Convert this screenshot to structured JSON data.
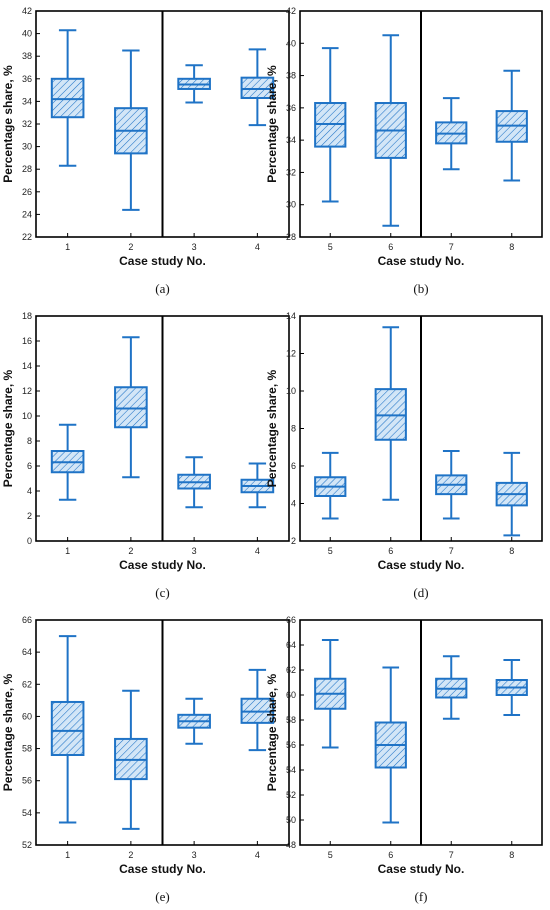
{
  "colors": {
    "box": "#1f73c6",
    "frame": "#000000"
  },
  "chart_data": [
    {
      "id": "a",
      "type": "box",
      "panel_label": "(a)",
      "xlabel": "Case study No.",
      "ylabel": "Percentage share, %",
      "ylim": [
        22,
        42
      ],
      "yticks": [
        22,
        24,
        26,
        28,
        30,
        32,
        34,
        36,
        38,
        40,
        42
      ],
      "divider_after": 2,
      "categories": [
        "1",
        "2",
        "3",
        "4"
      ],
      "boxes": [
        {
          "min": 28.3,
          "q1": 32.6,
          "median": 34.2,
          "q3": 36.0,
          "max": 40.3
        },
        {
          "min": 24.4,
          "q1": 29.4,
          "median": 31.4,
          "q3": 33.4,
          "max": 38.5
        },
        {
          "min": 33.9,
          "q1": 35.1,
          "median": 35.5,
          "q3": 36.0,
          "max": 37.2
        },
        {
          "min": 31.9,
          "q1": 34.3,
          "median": 35.1,
          "q3": 36.1,
          "max": 38.6
        }
      ]
    },
    {
      "id": "b",
      "type": "box",
      "panel_label": "(b)",
      "xlabel": "Case study No.",
      "ylabel": "Percentage share, %",
      "ylim": [
        28,
        42
      ],
      "yticks": [
        28,
        30,
        32,
        34,
        36,
        38,
        40,
        42
      ],
      "divider_after": 2,
      "categories": [
        "5",
        "6",
        "7",
        "8"
      ],
      "boxes": [
        {
          "min": 30.2,
          "q1": 33.6,
          "median": 35.0,
          "q3": 36.3,
          "max": 39.7
        },
        {
          "min": 28.7,
          "q1": 32.9,
          "median": 34.6,
          "q3": 36.3,
          "max": 40.5
        },
        {
          "min": 32.2,
          "q1": 33.8,
          "median": 34.4,
          "q3": 35.1,
          "max": 36.6
        },
        {
          "min": 31.5,
          "q1": 33.9,
          "median": 34.9,
          "q3": 35.8,
          "max": 38.3
        }
      ]
    },
    {
      "id": "c",
      "type": "box",
      "panel_label": "(c)",
      "xlabel": "Case study No.",
      "ylabel": "Percentage share, %",
      "ylim": [
        0,
        18
      ],
      "yticks": [
        0,
        2,
        4,
        6,
        8,
        10,
        12,
        14,
        16,
        18
      ],
      "divider_after": 2,
      "categories": [
        "1",
        "2",
        "3",
        "4"
      ],
      "boxes": [
        {
          "min": 3.3,
          "q1": 5.5,
          "median": 6.3,
          "q3": 7.2,
          "max": 9.3
        },
        {
          "min": 5.1,
          "q1": 9.1,
          "median": 10.6,
          "q3": 12.3,
          "max": 16.3
        },
        {
          "min": 2.7,
          "q1": 4.2,
          "median": 4.7,
          "q3": 5.3,
          "max": 6.7
        },
        {
          "min": 2.7,
          "q1": 3.9,
          "median": 4.4,
          "q3": 4.9,
          "max": 6.2
        }
      ]
    },
    {
      "id": "d",
      "type": "box",
      "panel_label": "(d)",
      "xlabel": "Case study No.",
      "ylabel": "Percentage share, %",
      "ylim": [
        2,
        14
      ],
      "yticks": [
        2,
        4,
        6,
        8,
        10,
        12,
        14
      ],
      "divider_after": 2,
      "categories": [
        "5",
        "6",
        "7",
        "8"
      ],
      "boxes": [
        {
          "min": 3.2,
          "q1": 4.4,
          "median": 4.9,
          "q3": 5.4,
          "max": 6.7
        },
        {
          "min": 4.2,
          "q1": 7.4,
          "median": 8.7,
          "q3": 10.1,
          "max": 13.4
        },
        {
          "min": 3.2,
          "q1": 4.5,
          "median": 5.0,
          "q3": 5.5,
          "max": 6.8
        },
        {
          "min": 2.3,
          "q1": 3.9,
          "median": 4.5,
          "q3": 5.1,
          "max": 6.7
        }
      ]
    },
    {
      "id": "e",
      "type": "box",
      "panel_label": "(e)",
      "xlabel": "Case study No.",
      "ylabel": "Percentage share, %",
      "ylim": [
        52,
        66
      ],
      "yticks": [
        52,
        54,
        56,
        58,
        60,
        62,
        64,
        66
      ],
      "divider_after": 2,
      "categories": [
        "1",
        "2",
        "3",
        "4"
      ],
      "boxes": [
        {
          "min": 53.4,
          "q1": 57.6,
          "median": 59.1,
          "q3": 60.9,
          "max": 65.0
        },
        {
          "min": 53.0,
          "q1": 56.1,
          "median": 57.3,
          "q3": 58.6,
          "max": 61.6
        },
        {
          "min": 58.3,
          "q1": 59.3,
          "median": 59.7,
          "q3": 60.1,
          "max": 61.1
        },
        {
          "min": 57.9,
          "q1": 59.6,
          "median": 60.3,
          "q3": 61.1,
          "max": 62.9
        }
      ]
    },
    {
      "id": "f",
      "type": "box",
      "panel_label": "(f)",
      "xlabel": "Case study No.",
      "ylabel": "Percentage share, %",
      "ylim": [
        48,
        66
      ],
      "yticks": [
        48,
        50,
        52,
        54,
        56,
        58,
        60,
        62,
        64,
        66
      ],
      "divider_after": 2,
      "categories": [
        "5",
        "6",
        "7",
        "8"
      ],
      "boxes": [
        {
          "min": 55.8,
          "q1": 58.9,
          "median": 60.1,
          "q3": 61.3,
          "max": 64.4
        },
        {
          "min": 49.8,
          "q1": 54.2,
          "median": 56.0,
          "q3": 57.8,
          "max": 62.2
        },
        {
          "min": 58.1,
          "q1": 59.8,
          "median": 60.5,
          "q3": 61.3,
          "max": 63.1
        },
        {
          "min": 58.4,
          "q1": 60.0,
          "median": 60.6,
          "q3": 61.2,
          "max": 62.8
        }
      ]
    }
  ]
}
